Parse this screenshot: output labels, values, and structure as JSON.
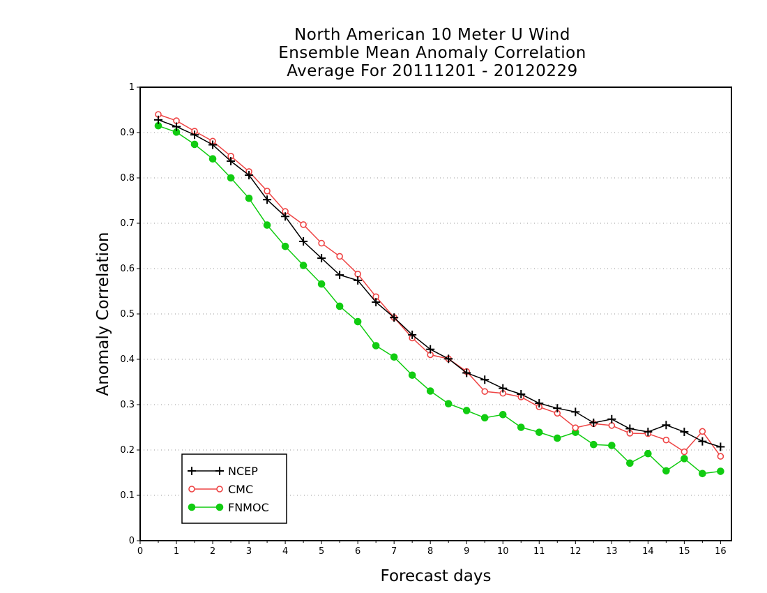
{
  "chart_data": {
    "type": "line",
    "title": [
      "North American 10 Meter U Wind",
      "Ensemble Mean Anomaly Correlation",
      "Average For 20111201 - 20120229"
    ],
    "xlabel": "Forecast days",
    "ylabel": "Anomaly Correlation",
    "xlim": [
      0,
      16.3
    ],
    "ylim": [
      0,
      1
    ],
    "xticks": [
      0,
      1,
      2,
      3,
      4,
      5,
      6,
      7,
      8,
      9,
      10,
      11,
      12,
      13,
      14,
      15,
      16
    ],
    "yticks": [
      0,
      0.1,
      0.2,
      0.3,
      0.4,
      0.5,
      0.6,
      0.7,
      0.8,
      0.9,
      1
    ],
    "ytick_labels": [
      "0",
      "0.1",
      "0.2",
      "0.3",
      "0.4",
      "0.5",
      "0.6",
      "0.7",
      "0.8",
      "0.9",
      "1"
    ],
    "grid": "horizontal dotted",
    "legend_position": "bottom-left",
    "x": [
      0.5,
      1,
      1.5,
      2,
      2.5,
      3,
      3.5,
      4,
      4.5,
      5,
      5.5,
      6,
      6.5,
      7,
      7.5,
      8,
      8.5,
      9,
      9.5,
      10,
      10.5,
      11,
      11.5,
      12,
      12.5,
      13,
      13.5,
      14,
      14.5,
      15,
      15.5,
      16
    ],
    "series": [
      {
        "name": "NCEP",
        "color": "#000000",
        "marker": "plus",
        "values": [
          0.928,
          0.913,
          0.895,
          0.873,
          0.837,
          0.806,
          0.752,
          0.715,
          0.66,
          0.623,
          0.586,
          0.574,
          0.526,
          0.492,
          0.454,
          0.422,
          0.401,
          0.37,
          0.355,
          0.336,
          0.323,
          0.303,
          0.292,
          0.284,
          0.26,
          0.268,
          0.247,
          0.24,
          0.255,
          0.24,
          0.219,
          0.207
        ]
      },
      {
        "name": "CMC",
        "color": "#ee4444",
        "marker": "open-circle",
        "values": [
          0.94,
          0.926,
          0.903,
          0.881,
          0.848,
          0.814,
          0.771,
          0.726,
          0.697,
          0.656,
          0.627,
          0.588,
          0.538,
          0.492,
          0.447,
          0.41,
          0.401,
          0.373,
          0.329,
          0.325,
          0.317,
          0.295,
          0.281,
          0.249,
          0.258,
          0.254,
          0.237,
          0.236,
          0.222,
          0.196,
          0.241,
          0.186
        ]
      },
      {
        "name": "FNMOC",
        "color": "#11cc11",
        "marker": "filled-circle",
        "values": [
          0.915,
          0.901,
          0.874,
          0.842,
          0.8,
          0.755,
          0.696,
          0.649,
          0.607,
          0.566,
          0.517,
          0.483,
          0.43,
          0.405,
          0.365,
          0.33,
          0.302,
          0.287,
          0.271,
          0.278,
          0.25,
          0.239,
          0.226,
          0.239,
          0.212,
          0.21,
          0.171,
          0.192,
          0.154,
          0.181,
          0.148,
          0.153
        ]
      }
    ]
  }
}
